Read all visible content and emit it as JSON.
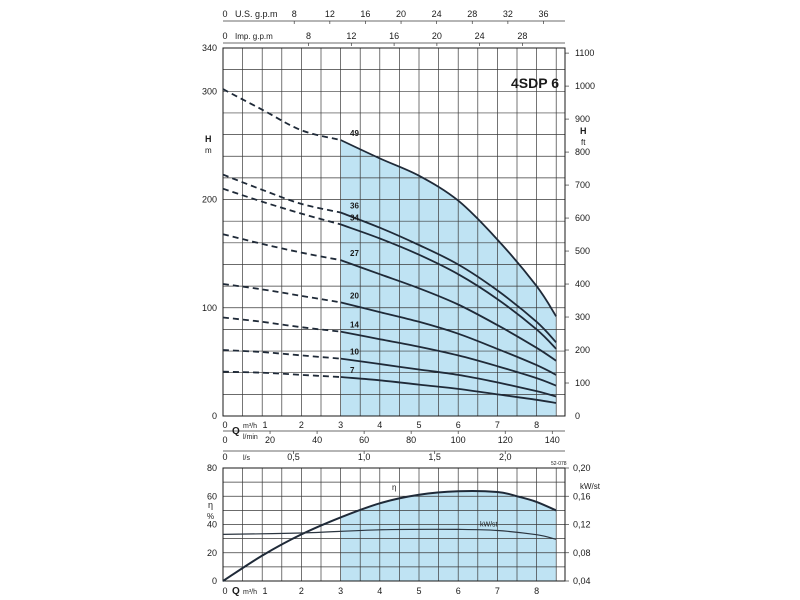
{
  "chart_data": [
    {
      "type": "line",
      "title": "4SDP 6",
      "top_axis_labels": {
        "us_gpm_label": "U.S. g.p.m",
        "us_gpm_ticks": [
          "0",
          "8",
          "12",
          "16",
          "20",
          "24",
          "28",
          "32",
          "36"
        ],
        "imp_gpm_label": "Imp. g.p.m",
        "imp_gpm_ticks": [
          "0",
          "8",
          "12",
          "16",
          "20",
          "24",
          "28"
        ]
      },
      "ylabel_left": "H",
      "ylabel_left_unit": "m",
      "ylabel_right": "H",
      "ylabel_right_unit": "ft",
      "ylim_m": [
        0,
        340
      ],
      "y_ticks_m": [
        "0",
        "100",
        "200",
        "300",
        "340"
      ],
      "y_ticks_ft": [
        "0",
        "100",
        "200",
        "300",
        "400",
        "500",
        "600",
        "700",
        "800",
        "900",
        "1000",
        "1100"
      ],
      "xlim_m3h": [
        0,
        8.6
      ],
      "x_ticks_m3h": [
        "0",
        "1",
        "2",
        "3",
        "4",
        "5",
        "6",
        "7",
        "8"
      ],
      "x_label_q": "Q",
      "x_unit_m3h": "m³/h",
      "x_unit_lmin": "l/min",
      "x_ticks_lmin": [
        "0",
        "20",
        "40",
        "60",
        "80",
        "100",
        "120",
        "140"
      ],
      "x_unit_ls": "l/s",
      "x_ticks_ls": [
        "0",
        "0,5",
        "1,0",
        "1,5",
        "2,0"
      ],
      "operating_range_m3h": [
        3,
        8.5
      ],
      "series": [
        {
          "name": "49",
          "x": [
            0,
            1,
            2,
            3,
            4,
            5,
            6,
            7,
            8,
            8.5
          ],
          "y": [
            302,
            283,
            264,
            255,
            238,
            222,
            199,
            163,
            120,
            92
          ]
        },
        {
          "name": "36",
          "x": [
            0,
            1,
            2,
            3,
            4,
            5,
            6,
            7,
            8,
            8.5
          ],
          "y": [
            223,
            209,
            196,
            188,
            174,
            158,
            140,
            116,
            87,
            68
          ]
        },
        {
          "name": "34",
          "x": [
            0,
            1,
            2,
            3,
            4,
            5,
            6,
            7,
            8,
            8.5
          ],
          "y": [
            210,
            198,
            187,
            177,
            164,
            149,
            131,
            108,
            80,
            62
          ]
        },
        {
          "name": "27",
          "x": [
            0,
            1,
            2,
            3,
            4,
            5,
            6,
            7,
            8,
            8.5
          ],
          "y": [
            168,
            159,
            151,
            144,
            131,
            118,
            103,
            84,
            63,
            51
          ]
        },
        {
          "name": "20",
          "x": [
            0,
            1,
            2,
            3,
            4,
            5,
            6,
            7,
            8,
            8.5
          ],
          "y": [
            122,
            117,
            111,
            105,
            96,
            87,
            76,
            62,
            47,
            38
          ]
        },
        {
          "name": "14",
          "x": [
            0,
            1,
            2,
            3,
            4,
            5,
            6,
            7,
            8,
            8.5
          ],
          "y": [
            91,
            87,
            82,
            78,
            71,
            64,
            56,
            46,
            35,
            28
          ]
        },
        {
          "name": "10",
          "x": [
            0,
            1,
            2,
            3,
            4,
            5,
            6,
            7,
            8,
            8.5
          ],
          "y": [
            61,
            59,
            56,
            53,
            48,
            43,
            38,
            31,
            23,
            18
          ]
        },
        {
          "name": "7",
          "x": [
            0,
            1,
            2,
            3,
            4,
            5,
            6,
            7,
            8,
            8.5
          ],
          "y": [
            41,
            40,
            38,
            36,
            33,
            29,
            25,
            20,
            15,
            12
          ]
        }
      ]
    },
    {
      "type": "line",
      "ylabel_left": "η",
      "ylabel_left_unit": "%",
      "ylim_pct": [
        0,
        80
      ],
      "y_ticks_pct": [
        "0",
        "20",
        "40",
        "60",
        "80"
      ],
      "ylabel_right": "kW/st",
      "ylim_kw": [
        0.04,
        0.2
      ],
      "y_ticks_kw": [
        "0,04",
        "0,08",
        "0,12",
        "0,16",
        "0,20"
      ],
      "xlim_m3h": [
        0,
        8.6
      ],
      "x_ticks_m3h": [
        "0",
        "1",
        "2",
        "3",
        "4",
        "5",
        "6",
        "7",
        "8"
      ],
      "x_label_q": "Q",
      "x_unit_m3h": "m³/h",
      "corner_note": "52-078",
      "series": [
        {
          "name": "η",
          "x": [
            0,
            1,
            2,
            3,
            4,
            5,
            6,
            7,
            7.5,
            8,
            8.5
          ],
          "y": [
            0,
            18,
            33,
            45,
            55,
            61,
            63.5,
            63,
            60,
            56,
            50
          ]
        },
        {
          "name": "kW/st",
          "axis": "right",
          "x": [
            0,
            2,
            4,
            6,
            7,
            8,
            8.5
          ],
          "y": [
            0.106,
            0.108,
            0.1125,
            0.113,
            0.1115,
            0.1055,
            0.099
          ]
        }
      ]
    }
  ]
}
